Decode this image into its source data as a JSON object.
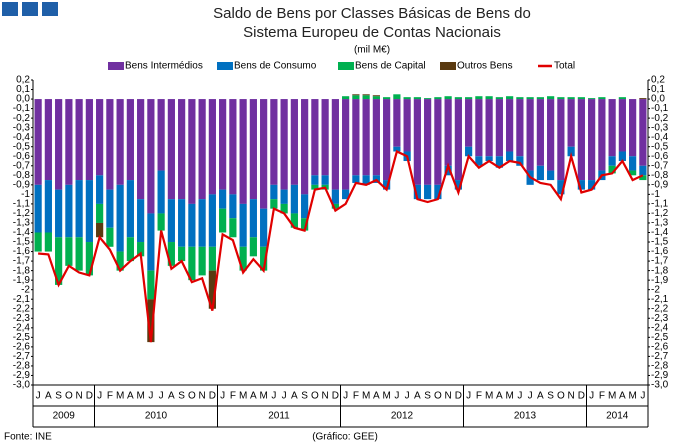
{
  "chart_data": {
    "type": "bar",
    "stacked": true,
    "title": [
      "Saldo de Bens por Classes Básicas de Bens do",
      "Sistema Europeu de Contas Nacionais"
    ],
    "subtitle": "(mil M€)",
    "source": "Fonte: INE",
    "credit": "(Gráfico: GEE)",
    "categories": [
      "J",
      "A",
      "S",
      "O",
      "N",
      "D",
      "J",
      "F",
      "M",
      "A",
      "M",
      "J",
      "J",
      "A",
      "S",
      "O",
      "N",
      "D",
      "J",
      "F",
      "M",
      "A",
      "M",
      "J",
      "J",
      "A",
      "S",
      "O",
      "N",
      "D",
      "J",
      "F",
      "M",
      "A",
      "M",
      "J",
      "J",
      "A",
      "S",
      "O",
      "N",
      "D",
      "J",
      "F",
      "M",
      "A",
      "M",
      "J",
      "J",
      "A",
      "S",
      "O",
      "N",
      "D",
      "J",
      "F",
      "M",
      "A",
      "M",
      "J"
    ],
    "years": [
      "2009",
      "2010",
      "2011",
      "2012",
      "2013",
      "2014"
    ],
    "series": [
      {
        "name": "Bens Intermédios",
        "color": "#7030a0",
        "values": [
          -0.9,
          -0.85,
          -0.95,
          -0.9,
          -0.85,
          -0.85,
          -0.8,
          -0.95,
          -0.9,
          -0.85,
          -1.05,
          -1.2,
          -0.75,
          -1.05,
          -1.05,
          -1.1,
          -1.05,
          -1.0,
          -0.95,
          -1.0,
          -1.1,
          -1.05,
          -1.15,
          -0.9,
          -0.95,
          -0.9,
          -1.0,
          -0.8,
          -0.8,
          -0.95,
          -0.95,
          -0.8,
          -0.8,
          -0.8,
          -0.85,
          -0.5,
          -0.55,
          -0.9,
          -0.9,
          -0.9,
          -0.7,
          -0.85,
          -0.5,
          -0.6,
          -0.6,
          -0.6,
          -0.55,
          -0.6,
          -0.75,
          -0.7,
          -0.75,
          -0.85,
          -0.5,
          -0.85,
          -0.85,
          -0.75,
          -0.6,
          -0.55,
          -0.6,
          -0.7
        ]
      },
      {
        "name": "Bens de Consumo",
        "color": "#0070c0",
        "values": [
          -0.5,
          -0.55,
          -0.5,
          -0.55,
          -0.6,
          -0.65,
          -0.3,
          -0.4,
          -0.7,
          -0.6,
          -0.45,
          -0.6,
          -0.45,
          -0.45,
          -0.5,
          -0.45,
          -0.5,
          -0.55,
          -0.2,
          -0.25,
          -0.45,
          -0.4,
          -0.4,
          -0.15,
          -0.15,
          -0.3,
          -0.25,
          -0.1,
          -0.1,
          -0.15,
          -0.1,
          -0.08,
          -0.1,
          -0.08,
          -0.1,
          -0.05,
          -0.1,
          -0.15,
          -0.15,
          -0.15,
          -0.1,
          -0.1,
          -0.1,
          -0.1,
          -0.05,
          -0.12,
          -0.1,
          -0.1,
          -0.15,
          -0.15,
          -0.1,
          -0.15,
          -0.1,
          -0.1,
          -0.1,
          -0.1,
          -0.1,
          -0.1,
          -0.15,
          -0.1
        ]
      },
      {
        "name": "Bens de Capital",
        "color": "#00b050",
        "values": [
          -0.2,
          -0.2,
          -0.5,
          -0.3,
          -0.35,
          -0.35,
          -0.2,
          -0.2,
          -0.2,
          -0.25,
          -0.15,
          -0.3,
          -0.18,
          -0.25,
          -0.15,
          -0.35,
          -0.3,
          -0.25,
          -0.25,
          -0.2,
          -0.25,
          -0.2,
          -0.25,
          -0.1,
          -0.1,
          -0.15,
          -0.13,
          -0.05,
          -0.05,
          -0.05,
          0.03,
          0.04,
          0.04,
          0.03,
          0.02,
          0.05,
          0.02,
          0.02,
          0.01,
          0.02,
          0.03,
          0.02,
          0.02,
          0.03,
          0.03,
          0.02,
          0.03,
          0.02,
          0.02,
          0.02,
          0.03,
          0.02,
          0.02,
          0.02,
          0.01,
          0.02,
          -0.08,
          0.02,
          -0.05,
          -0.05
        ]
      },
      {
        "name": "Outros Bens",
        "color": "#5a3a10",
        "values": [
          0,
          0,
          0,
          0,
          0,
          0,
          -0.15,
          0,
          0,
          0,
          0,
          -0.45,
          0,
          0,
          0,
          0,
          0,
          -0.4,
          0,
          0,
          0,
          0,
          0,
          0,
          0,
          0,
          0,
          0,
          0,
          0,
          0,
          0.01,
          0.01,
          0.01,
          0,
          0,
          0,
          0,
          0,
          0,
          0,
          0,
          0,
          0,
          0,
          0,
          0,
          0,
          0,
          0,
          0,
          0,
          0,
          0,
          0,
          0,
          0,
          0,
          0,
          0.01
        ]
      },
      {
        "name": "Total",
        "color": "#e00000",
        "line": true,
        "values": [
          -1.62,
          -1.63,
          -1.95,
          -1.75,
          -1.82,
          -1.85,
          -1.45,
          -1.58,
          -1.8,
          -1.7,
          -1.62,
          -2.55,
          -1.38,
          -1.78,
          -1.7,
          -1.92,
          -1.88,
          -2.22,
          -1.42,
          -1.48,
          -1.82,
          -1.68,
          -1.8,
          -1.15,
          -1.2,
          -1.35,
          -1.38,
          -0.95,
          -0.93,
          -1.17,
          -1.1,
          -0.88,
          -0.9,
          -0.85,
          -0.95,
          -0.55,
          -0.6,
          -1.05,
          -1.08,
          -1.05,
          -0.7,
          -0.98,
          -0.6,
          -0.72,
          -0.65,
          -0.72,
          -0.65,
          -0.67,
          -0.82,
          -0.88,
          -0.9,
          -1.05,
          -0.6,
          -0.98,
          -0.95,
          -0.8,
          -0.78,
          -0.65,
          -0.85,
          -0.8
        ]
      }
    ],
    "ylim": [
      -3.0,
      0.2
    ],
    "yticks": [
      {
        "value": 0.2,
        "label": "0,2"
      },
      {
        "value": 0.1,
        "label": "0,1"
      },
      {
        "value": 0,
        "label": "0,0"
      },
      {
        "value": -0.1,
        "label": "-0,1"
      },
      {
        "value": -0.2,
        "label": "-0,2"
      },
      {
        "value": -0.3,
        "label": "-0,3"
      },
      {
        "value": -0.4,
        "label": "-0,4"
      },
      {
        "value": -0.5,
        "label": "-0,5"
      },
      {
        "value": -0.6,
        "label": "-0,6"
      },
      {
        "value": -0.7,
        "label": "-0,7"
      },
      {
        "value": -0.8,
        "label": "-0,8"
      },
      {
        "value": -0.9,
        "label": "-0,9"
      },
      -1,
      {
        "value": -1.1,
        "label": "-1,1"
      },
      {
        "value": -1.2,
        "label": "-1,2"
      },
      {
        "value": -1.3,
        "label": "-1,3"
      },
      {
        "value": -1.4,
        "label": "-1,4"
      },
      {
        "value": -1.5,
        "label": "-1,5"
      },
      {
        "value": -1.6,
        "label": "-1,6"
      },
      {
        "value": -1.7,
        "label": "-1,7"
      },
      {
        "value": -1.8,
        "label": "-1,8"
      },
      {
        "value": -1.9,
        "label": "-1,9"
      },
      -2,
      {
        "value": -2.1,
        "label": "-2,1"
      },
      {
        "value": -2.2,
        "label": "-2,2"
      },
      {
        "value": -2.3,
        "label": "-2,3"
      },
      {
        "value": -2.4,
        "label": "-2,4"
      },
      {
        "value": -2.5,
        "label": "-2,5"
      },
      {
        "value": -2.6,
        "label": "-2,6"
      },
      {
        "value": -2.7,
        "label": "-2,7"
      },
      {
        "value": -2.8,
        "label": "-2,8"
      },
      {
        "value": -2.9,
        "label": "-2,9"
      },
      {
        "value": -3.0,
        "label": "-3,0"
      }
    ]
  }
}
